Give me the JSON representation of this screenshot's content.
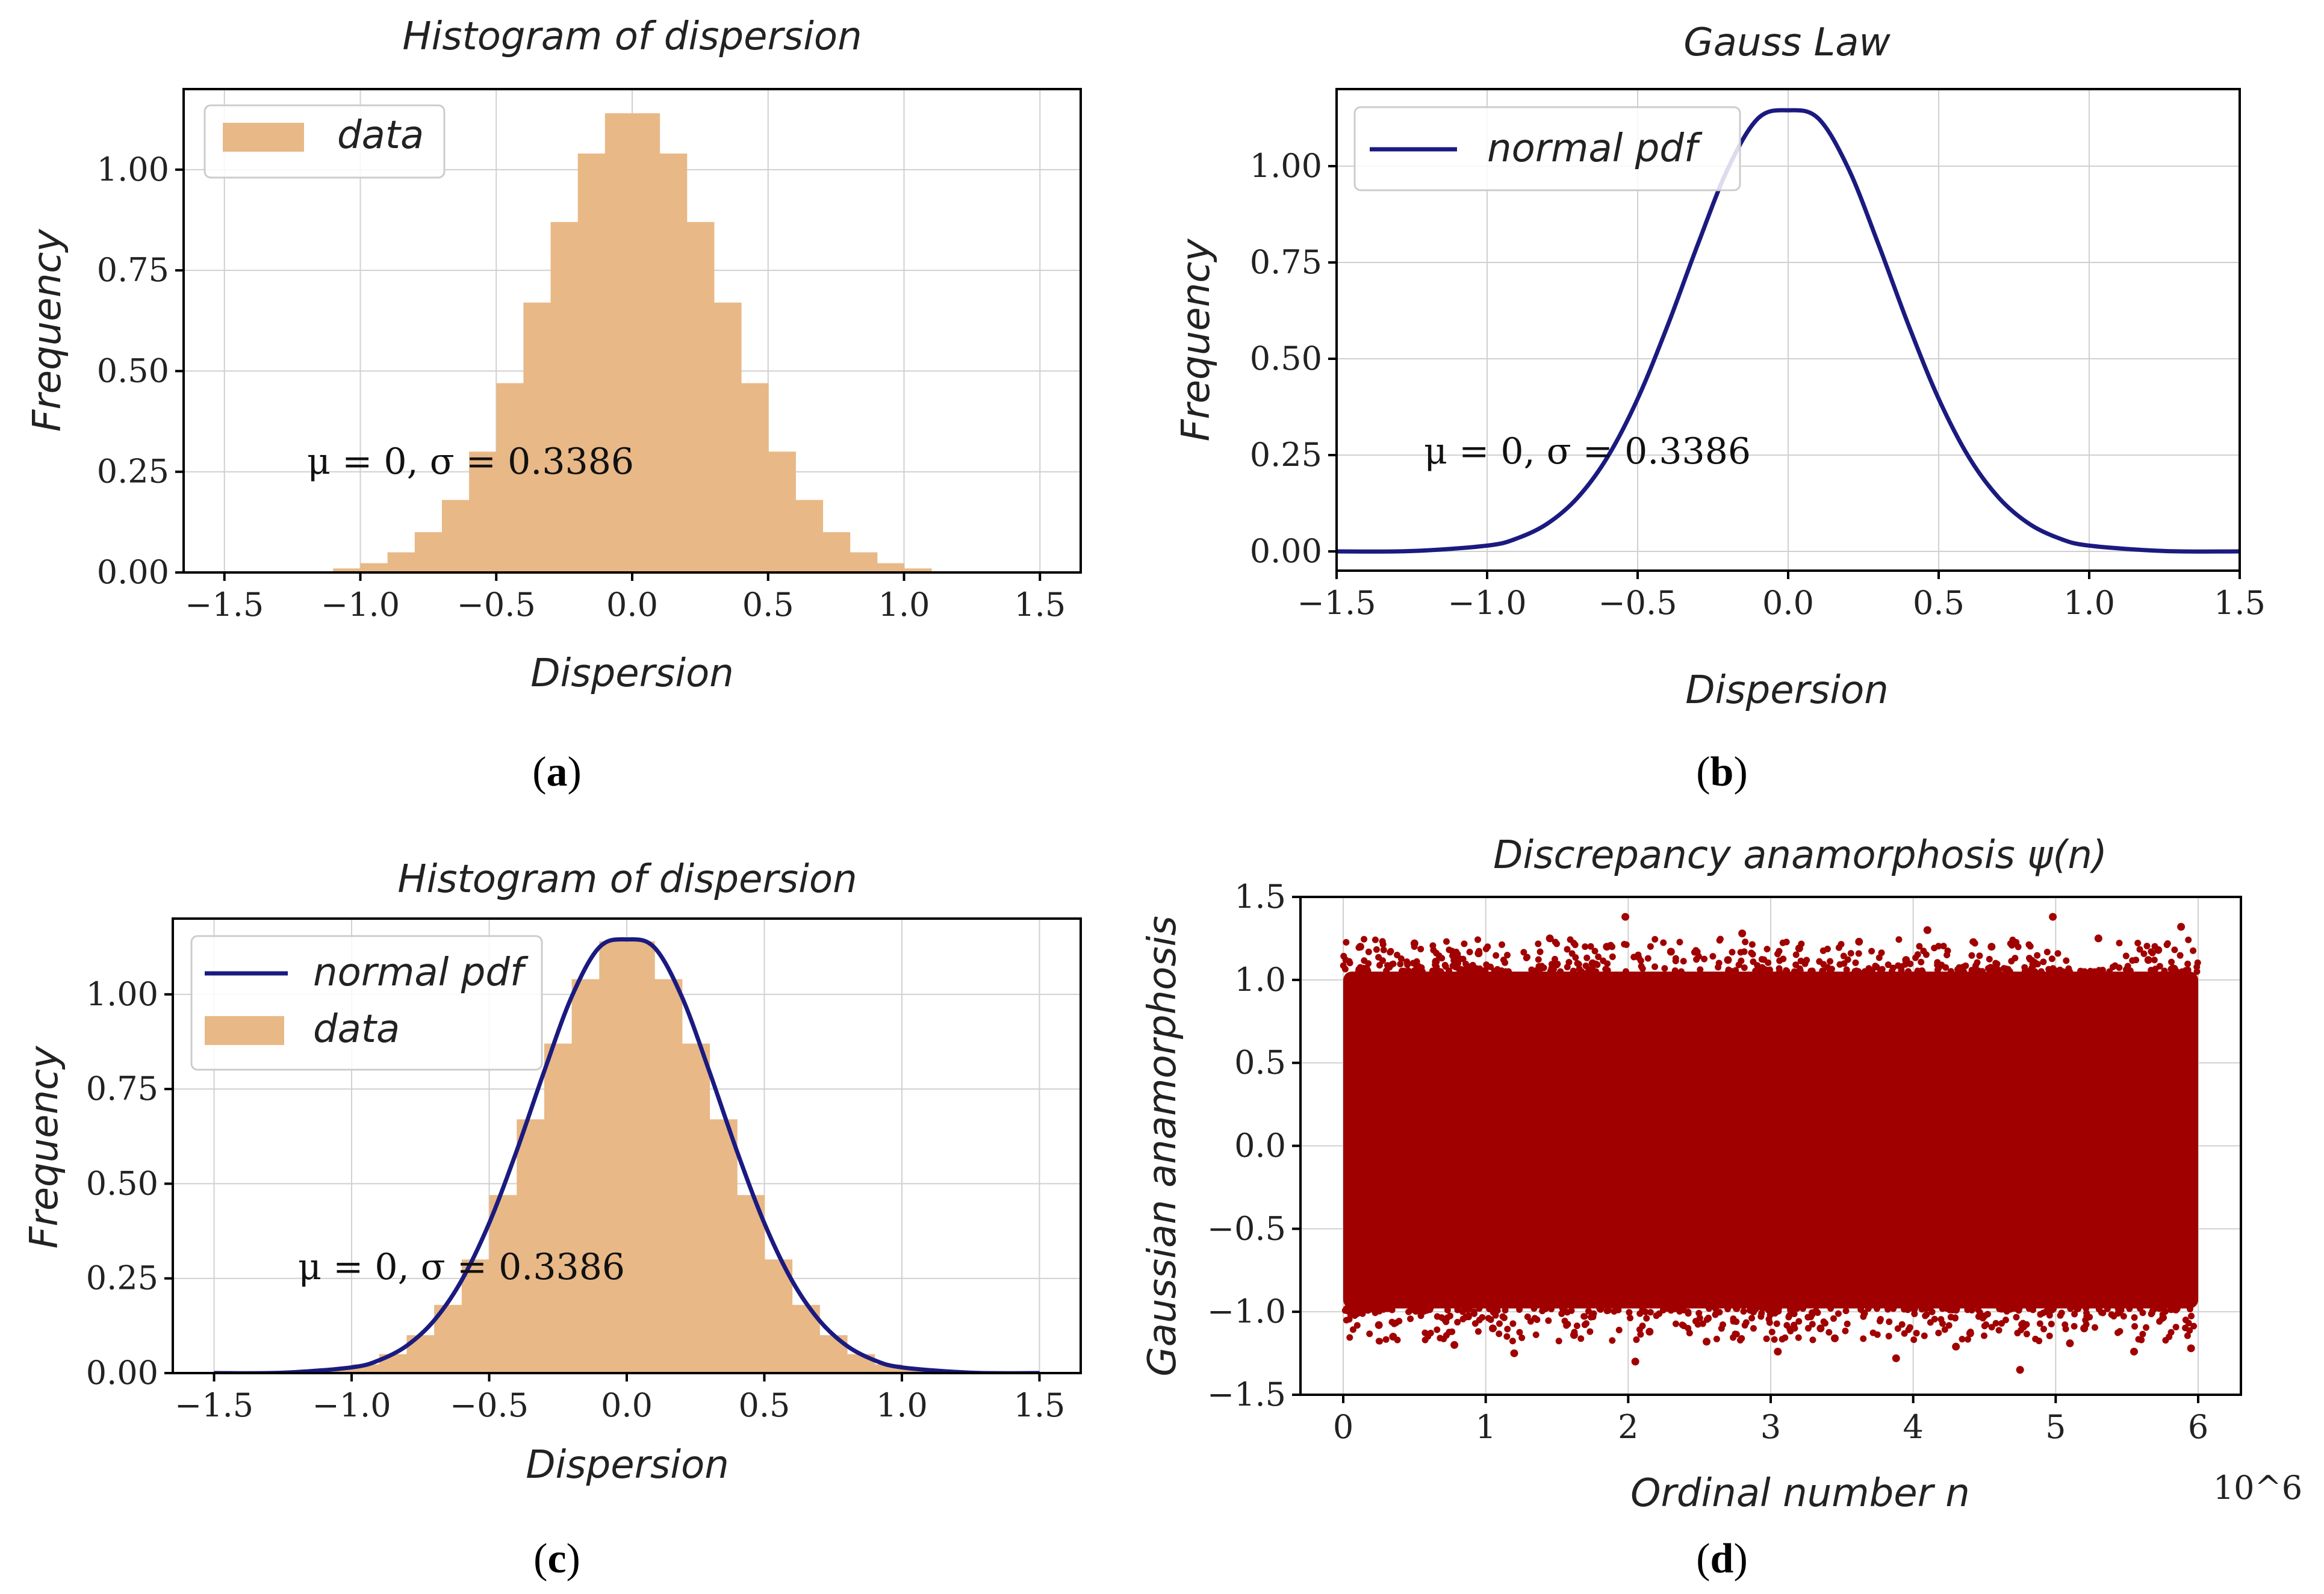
{
  "chart_data": [
    {
      "id": "a",
      "type": "bar",
      "title": "Histogram of dispersion",
      "xlabel": "Dispersion",
      "ylabel": "Frequency",
      "xlim": [
        -1.65,
        1.65
      ],
      "ylim": [
        0.0,
        1.2
      ],
      "xticks": [
        -1.5,
        -1.0,
        -0.5,
        0.0,
        0.5,
        1.0,
        1.5
      ],
      "xtick_labels": [
        "−1.5",
        "−1.0",
        "−0.5",
        "0.0",
        "0.5",
        "1.0",
        "1.5"
      ],
      "yticks": [
        0.0,
        0.25,
        0.5,
        0.75,
        1.0
      ],
      "ytick_labels": [
        "0.00",
        "0.25",
        "0.50",
        "0.75",
        "1.00"
      ],
      "legend": [
        {
          "label": "data",
          "kind": "patch",
          "color": "#e8b886"
        }
      ],
      "legend_position": "top-left",
      "annotation": "μ = 0, σ = 0.3386",
      "series": [
        {
          "name": "data",
          "kind": "histogram",
          "color": "#e8b886",
          "x": [
            -1.05,
            -0.95,
            -0.85,
            -0.75,
            -0.65,
            -0.55,
            -0.45,
            -0.35,
            -0.25,
            -0.15,
            -0.05,
            0.05,
            0.15,
            0.25,
            0.35,
            0.45,
            0.55,
            0.65,
            0.75,
            0.85,
            0.95,
            1.05
          ],
          "values": [
            0.01,
            0.023,
            0.05,
            0.1,
            0.18,
            0.3,
            0.47,
            0.67,
            0.87,
            1.04,
            1.14,
            1.14,
            1.04,
            0.87,
            0.67,
            0.47,
            0.3,
            0.18,
            0.1,
            0.05,
            0.023,
            0.01
          ]
        }
      ],
      "caption": "a"
    },
    {
      "id": "b",
      "type": "line",
      "title": "Gauss Law",
      "xlabel": "Dispersion",
      "ylabel": "Frequency",
      "xlim": [
        -1.5,
        1.5
      ],
      "ylim": [
        -0.05,
        1.2
      ],
      "xticks": [
        -1.5,
        -1.0,
        -0.5,
        0.0,
        0.5,
        1.0,
        1.5
      ],
      "xtick_labels": [
        "−1.5",
        "−1.0",
        "−0.5",
        "0.0",
        "0.5",
        "1.0",
        "1.5"
      ],
      "yticks": [
        0.0,
        0.25,
        0.5,
        0.75,
        1.0
      ],
      "ytick_labels": [
        "0.00",
        "0.25",
        "0.50",
        "0.75",
        "1.00"
      ],
      "legend": [
        {
          "label": "normal pdf",
          "kind": "line",
          "color": "#1a1a80"
        }
      ],
      "legend_position": "top-left",
      "annotation": "μ = 0, σ = 0.3386",
      "series": [
        {
          "name": "normal pdf",
          "kind": "line",
          "color": "#1a1a80",
          "x": [
            -1.5,
            -1.25,
            -1.0,
            -0.9,
            -0.8,
            -0.7,
            -0.6,
            -0.5,
            -0.4,
            -0.3,
            -0.2,
            -0.1,
            0.0,
            0.1,
            0.2,
            0.3,
            0.4,
            0.5,
            0.6,
            0.7,
            0.8,
            0.9,
            1.0,
            1.25,
            1.5
          ],
          "values": [
            0.0,
            0.001,
            0.015,
            0.034,
            0.072,
            0.139,
            0.245,
            0.396,
            0.587,
            0.797,
            0.994,
            1.124,
            1.145,
            1.124,
            0.994,
            0.797,
            0.587,
            0.396,
            0.245,
            0.139,
            0.072,
            0.034,
            0.015,
            0.001,
            0.0
          ]
        }
      ],
      "caption": "b"
    },
    {
      "id": "c",
      "type": "bar",
      "title": "Histogram of dispersion",
      "xlabel": "Dispersion",
      "ylabel": "Frequency",
      "xlim": [
        -1.65,
        1.65
      ],
      "ylim": [
        0.0,
        1.2
      ],
      "xticks": [
        -1.5,
        -1.0,
        -0.5,
        0.0,
        0.5,
        1.0,
        1.5
      ],
      "xtick_labels": [
        "−1.5",
        "−1.0",
        "−0.5",
        "0.0",
        "0.5",
        "1.0",
        "1.5"
      ],
      "yticks": [
        0.0,
        0.25,
        0.5,
        0.75,
        1.0
      ],
      "ytick_labels": [
        "0.00",
        "0.25",
        "0.50",
        "0.75",
        "1.00"
      ],
      "legend": [
        {
          "label": "normal pdf",
          "kind": "line",
          "color": "#1a1a80"
        },
        {
          "label": "data",
          "kind": "patch",
          "color": "#e8b886"
        }
      ],
      "legend_position": "top-left",
      "annotation": "μ = 0, σ = 0.3386",
      "series": [
        {
          "name": "data",
          "kind": "histogram",
          "color": "#e8b886",
          "x": [
            -1.05,
            -0.95,
            -0.85,
            -0.75,
            -0.65,
            -0.55,
            -0.45,
            -0.35,
            -0.25,
            -0.15,
            -0.05,
            0.05,
            0.15,
            0.25,
            0.35,
            0.45,
            0.55,
            0.65,
            0.75,
            0.85,
            0.95,
            1.05
          ],
          "values": [
            0.01,
            0.023,
            0.05,
            0.1,
            0.18,
            0.3,
            0.47,
            0.67,
            0.87,
            1.04,
            1.14,
            1.14,
            1.04,
            0.87,
            0.67,
            0.47,
            0.3,
            0.18,
            0.1,
            0.05,
            0.023,
            0.01
          ]
        },
        {
          "name": "normal pdf",
          "kind": "line",
          "color": "#1a1a80",
          "x": [
            -1.5,
            -1.25,
            -1.0,
            -0.9,
            -0.8,
            -0.7,
            -0.6,
            -0.5,
            -0.4,
            -0.3,
            -0.2,
            -0.1,
            0.0,
            0.1,
            0.2,
            0.3,
            0.4,
            0.5,
            0.6,
            0.7,
            0.8,
            0.9,
            1.0,
            1.25,
            1.5
          ],
          "values": [
            0.0,
            0.001,
            0.015,
            0.034,
            0.072,
            0.139,
            0.245,
            0.396,
            0.587,
            0.797,
            0.994,
            1.124,
            1.145,
            1.124,
            0.994,
            0.797,
            0.587,
            0.396,
            0.245,
            0.139,
            0.072,
            0.034,
            0.015,
            0.001,
            0.0
          ]
        }
      ],
      "caption": "c"
    },
    {
      "id": "d",
      "type": "scatter",
      "title": "Discrepancy anamorphosis ψ(n)",
      "xlabel": "Ordinal number n",
      "ylabel": "Gaussian anamorphosis",
      "x_multiplier_label": "10^6",
      "xlim": [
        -0.3,
        6.3
      ],
      "ylim": [
        -1.5,
        1.5
      ],
      "xticks": [
        0,
        1,
        2,
        3,
        4,
        5,
        6
      ],
      "xtick_labels": [
        "0",
        "1",
        "2",
        "3",
        "4",
        "5",
        "6"
      ],
      "yticks": [
        -1.5,
        -1.0,
        -0.5,
        0.0,
        0.5,
        1.0,
        1.5
      ],
      "ytick_labels": [
        "−1.5",
        "−1.0",
        "−0.5",
        "0.0",
        "0.5",
        "1.0",
        "1.5"
      ],
      "series": [
        {
          "name": "ψ(n)",
          "kind": "scatter",
          "color": "#a00000",
          "x_range": [
            0,
            6
          ],
          "dense_band": [
            -0.98,
            1.05
          ],
          "outlier_extent": [
            -1.35,
            1.38
          ],
          "points": [
            [
              0.12,
              1.2
            ],
            [
              0.35,
              -1.15
            ],
            [
              0.5,
              1.22
            ],
            [
              0.78,
              -1.2
            ],
            [
              0.95,
              1.16
            ],
            [
              1.2,
              -1.25
            ],
            [
              1.45,
              1.25
            ],
            [
              1.62,
              -1.14
            ],
            [
              1.85,
              1.2
            ],
            [
              1.98,
              1.38
            ],
            [
              2.05,
              -1.3
            ],
            [
              2.3,
              1.17
            ],
            [
              2.55,
              -1.18
            ],
            [
              2.8,
              1.28
            ],
            [
              3.05,
              -1.24
            ],
            [
              3.2,
              1.19
            ],
            [
              3.45,
              -1.16
            ],
            [
              3.62,
              1.23
            ],
            [
              3.88,
              -1.28
            ],
            [
              4.1,
              1.3
            ],
            [
              4.3,
              -1.21
            ],
            [
              4.55,
              1.2
            ],
            [
              4.75,
              -1.35
            ],
            [
              4.98,
              1.38
            ],
            [
              5.1,
              -1.19
            ],
            [
              5.3,
              1.25
            ],
            [
              5.55,
              -1.24
            ],
            [
              5.72,
              1.18
            ],
            [
              5.88,
              1.32
            ],
            [
              5.95,
              -1.22
            ],
            [
              0.25,
              -1.08
            ],
            [
              0.65,
              1.11
            ],
            [
              1.05,
              -1.1
            ],
            [
              1.75,
              1.1
            ],
            [
              2.15,
              -1.12
            ],
            [
              2.7,
              1.12
            ],
            [
              3.35,
              -1.1
            ],
            [
              3.95,
              1.12
            ],
            [
              4.4,
              -1.13
            ],
            [
              4.85,
              1.1
            ],
            [
              5.2,
              -1.1
            ],
            [
              5.65,
              1.12
            ]
          ]
        }
      ],
      "caption": "d"
    }
  ]
}
